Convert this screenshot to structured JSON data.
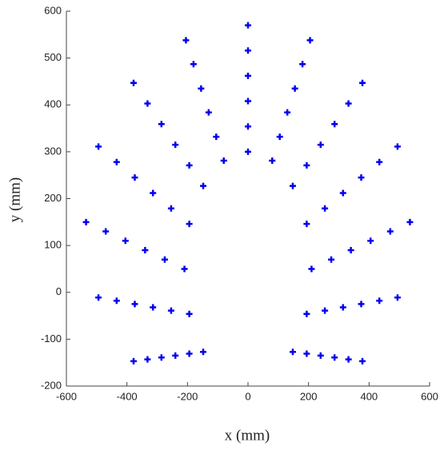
{
  "chart_data": {
    "type": "scatter",
    "x_label": "x (mm)",
    "y_label": "y (mm)",
    "xlim": [
      -600,
      600
    ],
    "ylim": [
      -200,
      600
    ],
    "xticks": [
      -600,
      -400,
      -200,
      0,
      200,
      400,
      600
    ],
    "yticks": [
      -200,
      -100,
      0,
      100,
      200,
      300,
      400,
      500,
      600
    ],
    "marker": "+",
    "series": [
      {
        "color": "#0000ee",
        "x": [
          148,
          194,
          210,
          194,
          148,
          80,
          0,
          -80,
          -148,
          -194,
          -210,
          -194,
          -148,
          194,
          254,
          275,
          254,
          194,
          105,
          0,
          -105,
          -194,
          -254,
          -275,
          -254,
          -194,
          240,
          314,
          340,
          314,
          240,
          130,
          0,
          -130,
          -240,
          -314,
          -340,
          -314,
          -240,
          286,
          374,
          405,
          374,
          286,
          155,
          0,
          -155,
          -286,
          -374,
          -405,
          -374,
          -286,
          332,
          434,
          470,
          434,
          332,
          180,
          0,
          -180,
          -332,
          -434,
          -470,
          -434,
          -332,
          378,
          494,
          535,
          494,
          378,
          205,
          0,
          -205,
          -378,
          -494,
          -535,
          -494,
          -378
        ],
        "y": [
          -127,
          -46,
          50,
          146,
          227,
          281,
          300,
          281,
          227,
          146,
          50,
          -46,
          -127,
          -131,
          -39,
          70,
          179,
          271,
          332,
          354,
          332,
          271,
          179,
          70,
          -39,
          -131,
          -135,
          -32,
          90,
          212,
          315,
          384,
          408,
          384,
          315,
          212,
          90,
          -32,
          -135,
          -139,
          -25,
          110,
          245,
          359,
          435,
          462,
          435,
          359,
          245,
          110,
          -25,
          -139,
          -143,
          -18,
          130,
          278,
          403,
          487,
          516,
          487,
          403,
          278,
          130,
          -18,
          -143,
          -147,
          -11,
          150,
          311,
          447,
          538,
          570,
          538,
          447,
          311,
          150,
          -11,
          -147
        ]
      }
    ]
  }
}
